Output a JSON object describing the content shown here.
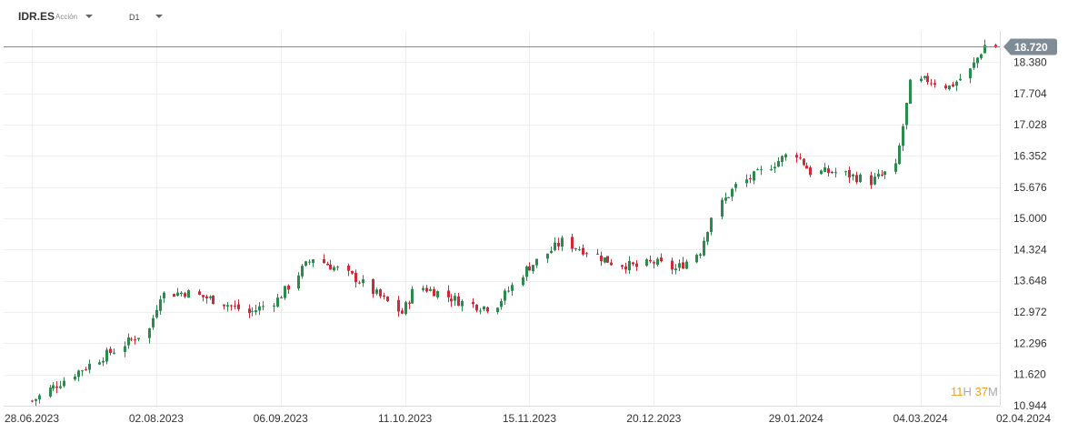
{
  "toolbar": {
    "symbol": "IDR.ES",
    "symbol_type": "Acción",
    "timeframe": "D1"
  },
  "timer": {
    "hours": "11",
    "h_label": "H",
    "minutes": "37",
    "m_label": "M"
  },
  "colors": {
    "up": "#2d8a4f",
    "down": "#d02a3a",
    "grid": "#eeeeee",
    "price_tag": "#7f8c95",
    "price_line": "#888888"
  },
  "chart_data": {
    "type": "candlestick",
    "title": "",
    "xlabel": "",
    "ylabel": "",
    "ylim": [
      10.944,
      19.0
    ],
    "y_ticks": [
      "18.380",
      "17.704",
      "17.028",
      "16.352",
      "15.676",
      "15.000",
      "14.324",
      "13.648",
      "12.972",
      "12.296",
      "11.620",
      "10.944"
    ],
    "x_ticks": [
      "28.06.2023",
      "02.08.2023",
      "06.09.2023",
      "11.10.2023",
      "15.11.2023",
      "20.12.2023",
      "29.01.2024",
      "04.03.2024",
      "02.04.2024"
    ],
    "x_range": [
      "2023-06-28",
      "2024-04-02"
    ],
    "current_price": "18.720",
    "current_price_value": 18.72,
    "anchors": [
      [
        "2023-06-28",
        11.05
      ],
      [
        "2023-07-10",
        11.65
      ],
      [
        "2023-07-20",
        12.1
      ],
      [
        "2023-07-31",
        12.6
      ],
      [
        "2023-08-03",
        13.35
      ],
      [
        "2023-08-10",
        13.4
      ],
      [
        "2023-08-20",
        13.2
      ],
      [
        "2023-08-28",
        12.95
      ],
      [
        "2023-09-05",
        13.25
      ],
      [
        "2023-09-12",
        13.9
      ],
      [
        "2023-09-15",
        14.15
      ],
      [
        "2023-09-22",
        13.9
      ],
      [
        "2023-09-27",
        13.7
      ],
      [
        "2023-10-04",
        13.3
      ],
      [
        "2023-10-10",
        12.95
      ],
      [
        "2023-10-14",
        13.55
      ],
      [
        "2023-10-20",
        13.4
      ],
      [
        "2023-10-28",
        13.15
      ],
      [
        "2023-11-05",
        13.05
      ],
      [
        "2023-11-08",
        13.35
      ],
      [
        "2023-11-14",
        13.9
      ],
      [
        "2023-11-20",
        14.25
      ],
      [
        "2023-11-24",
        14.5
      ],
      [
        "2023-12-01",
        14.3
      ],
      [
        "2023-12-08",
        14.05
      ],
      [
        "2023-12-15",
        13.95
      ],
      [
        "2023-12-20",
        14.05
      ],
      [
        "2023-12-26",
        13.9
      ],
      [
        "2024-01-02",
        14.3
      ],
      [
        "2024-01-05",
        15.05
      ],
      [
        "2024-01-12",
        15.7
      ],
      [
        "2024-01-19",
        16.0
      ],
      [
        "2024-01-26",
        16.35
      ],
      [
        "2024-01-29",
        16.4
      ],
      [
        "2024-02-02",
        16.0
      ],
      [
        "2024-02-10",
        16.0
      ],
      [
        "2024-02-19",
        15.8
      ],
      [
        "2024-02-26",
        16.1
      ],
      [
        "2024-03-01",
        17.9
      ],
      [
        "2024-03-06",
        18.0
      ],
      [
        "2024-03-12",
        17.85
      ],
      [
        "2024-03-18",
        18.2
      ],
      [
        "2024-03-22",
        18.75
      ],
      [
        "2024-03-25",
        18.72
      ]
    ]
  }
}
